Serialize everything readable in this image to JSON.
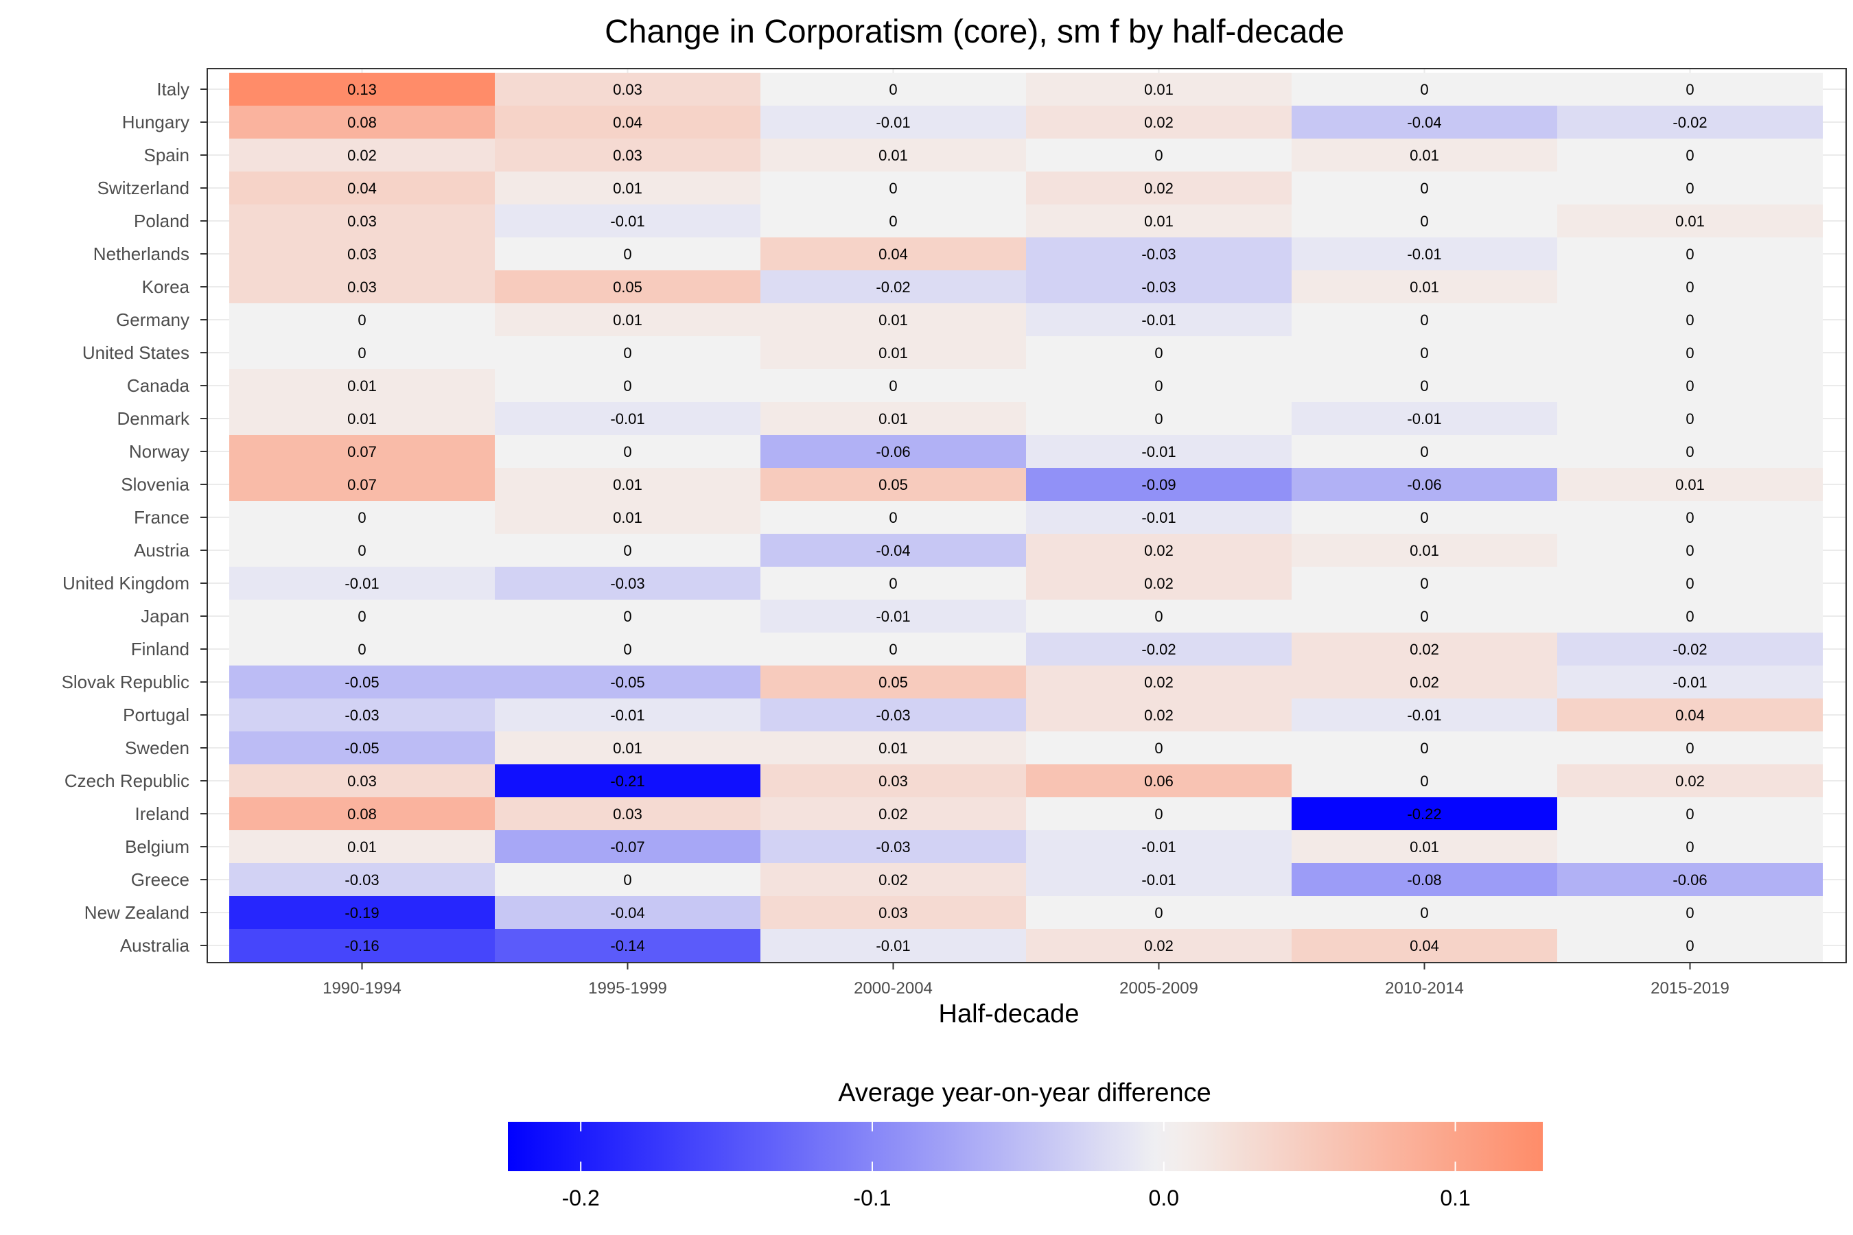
{
  "chart_data": {
    "type": "heatmap",
    "title": "Change in Corporatism (core), sm f by half-decade",
    "xlabel": "Half-decade",
    "ylabel": "",
    "x": [
      "1990-1994",
      "1995-1999",
      "2000-2004",
      "2005-2009",
      "2010-2014",
      "2015-2019"
    ],
    "y": [
      "Italy",
      "Hungary",
      "Spain",
      "Switzerland",
      "Poland",
      "Netherlands",
      "Korea",
      "Germany",
      "United States",
      "Canada",
      "Denmark",
      "Norway",
      "Slovenia",
      "France",
      "Austria",
      "United Kingdom",
      "Japan",
      "Finland",
      "Slovak Republic",
      "Portugal",
      "Sweden",
      "Czech Republic",
      "Ireland",
      "Belgium",
      "Greece",
      "New Zealand",
      "Australia"
    ],
    "values": [
      [
        0.13,
        0.03,
        0,
        0.01,
        0,
        0
      ],
      [
        0.08,
        0.04,
        -0.01,
        0.02,
        -0.04,
        -0.02
      ],
      [
        0.02,
        0.03,
        0.01,
        0,
        0.01,
        0
      ],
      [
        0.04,
        0.01,
        0,
        0.02,
        0,
        0
      ],
      [
        0.03,
        -0.01,
        0,
        0.01,
        0,
        0.01
      ],
      [
        0.03,
        0,
        0.04,
        -0.03,
        -0.01,
        0
      ],
      [
        0.03,
        0.05,
        -0.02,
        -0.03,
        0.01,
        0
      ],
      [
        0,
        0.01,
        0.01,
        -0.01,
        0,
        0
      ],
      [
        0,
        0,
        0.01,
        0,
        0,
        0
      ],
      [
        0.01,
        0,
        0,
        0,
        0,
        0
      ],
      [
        0.01,
        -0.01,
        0.01,
        0,
        -0.01,
        0
      ],
      [
        0.07,
        0,
        -0.06,
        -0.01,
        0,
        0
      ],
      [
        0.07,
        0.01,
        0.05,
        -0.09,
        -0.06,
        0.01
      ],
      [
        0,
        0.01,
        0,
        -0.01,
        0,
        0
      ],
      [
        0,
        0,
        -0.04,
        0.02,
        0.01,
        0
      ],
      [
        -0.01,
        -0.03,
        0,
        0.02,
        0,
        0
      ],
      [
        0,
        0,
        -0.01,
        0,
        0,
        0
      ],
      [
        0,
        0,
        0,
        -0.02,
        0.02,
        -0.02
      ],
      [
        -0.05,
        -0.05,
        0.05,
        0.02,
        0.02,
        -0.01
      ],
      [
        -0.03,
        -0.01,
        -0.03,
        0.02,
        -0.01,
        0.04
      ],
      [
        -0.05,
        0.01,
        0.01,
        0,
        0,
        0
      ],
      [
        0.03,
        -0.21,
        0.03,
        0.06,
        0,
        0.02
      ],
      [
        0.08,
        0.03,
        0.02,
        0,
        -0.22,
        0
      ],
      [
        0.01,
        -0.07,
        -0.03,
        -0.01,
        0.01,
        0
      ],
      [
        -0.03,
        0,
        0.02,
        -0.01,
        -0.08,
        -0.06
      ],
      [
        -0.19,
        -0.04,
        0.03,
        0,
        0,
        0
      ],
      [
        -0.16,
        -0.14,
        -0.01,
        0.02,
        0.04,
        0
      ]
    ],
    "legend": {
      "title": "Average year-on-year difference",
      "placement": "bottom",
      "ticks": [
        -0.2,
        -0.1,
        0.0,
        0.1
      ],
      "tick_labels": [
        "-0.2",
        "-0.1",
        "0.0",
        "0.1"
      ],
      "range": [
        -0.225,
        0.13
      ]
    },
    "colors": {
      "low": "#0000FF",
      "mid": "#F2F2F2",
      "high": "#FF8C69",
      "midpoint": 0
    }
  }
}
